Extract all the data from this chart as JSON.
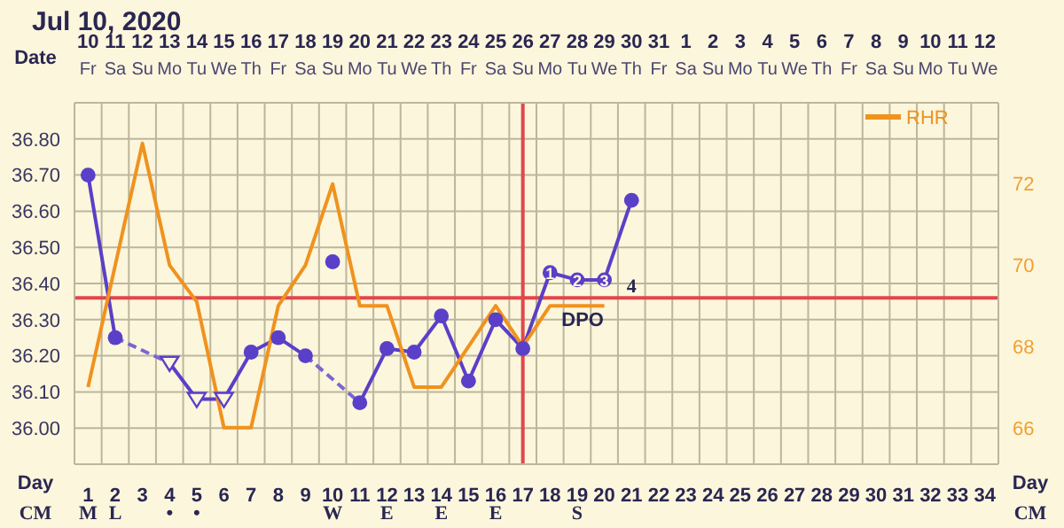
{
  "chart_data": {
    "type": "line",
    "title": "Jul 10, 2020",
    "xlabel": "Day",
    "x2label": "Date",
    "x": [
      1,
      2,
      3,
      4,
      5,
      6,
      7,
      8,
      9,
      10,
      11,
      12,
      13,
      14,
      15,
      16,
      17,
      18,
      19,
      20,
      21
    ],
    "xlim": [
      0.5,
      34.5
    ],
    "xticks": [
      1,
      2,
      3,
      4,
      5,
      6,
      7,
      8,
      9,
      10,
      11,
      12,
      13,
      14,
      15,
      16,
      17,
      18,
      19,
      20,
      21,
      22,
      23,
      24,
      25,
      26,
      27,
      28,
      29,
      30,
      31,
      32,
      33,
      34
    ],
    "x2lim": [
      "2020-07-09T12:00",
      "2020-08-12T12:00"
    ],
    "x2ticks": [
      {
        "value": "2020-07-10",
        "label": "10\nFr"
      },
      {
        "value": "2020-07-11",
        "label": "11\nSa"
      },
      {
        "value": "2020-07-12",
        "label": "12\nSu"
      },
      {
        "value": "2020-07-13",
        "label": "13\nMo"
      },
      {
        "value": "2020-07-14",
        "label": "14\nTu"
      },
      {
        "value": "2020-07-15",
        "label": "15\nWe"
      },
      {
        "value": "2020-07-16",
        "label": "16\nTh"
      },
      {
        "value": "2020-07-17",
        "label": "17\nFr"
      },
      {
        "value": "2020-07-18",
        "label": "18\nSa"
      },
      {
        "value": "2020-07-19",
        "label": "19\nSu"
      },
      {
        "value": "2020-07-20",
        "label": "20\nMo"
      },
      {
        "value": "2020-07-21",
        "label": "21\nTu"
      },
      {
        "value": "2020-07-22",
        "label": "22\nWe"
      },
      {
        "value": "2020-07-23",
        "label": "23\nTh"
      },
      {
        "value": "2020-07-24",
        "label": "24\nFr"
      },
      {
        "value": "2020-07-25",
        "label": "25\nSa"
      },
      {
        "value": "2020-07-26",
        "label": "26\nSu"
      },
      {
        "value": "2020-07-27",
        "label": "27\nMo"
      },
      {
        "value": "2020-07-28",
        "label": "28\nTu"
      },
      {
        "value": "2020-07-29",
        "label": "29\nWe"
      },
      {
        "value": "2020-07-30",
        "label": "30\nTh"
      },
      {
        "value": "2020-07-31",
        "label": "31\nFr"
      },
      {
        "value": "2020-08-01",
        "label": "1\nSa"
      },
      {
        "value": "2020-08-02",
        "label": "2\nSu"
      },
      {
        "value": "2020-08-03",
        "label": "3\nMo"
      },
      {
        "value": "2020-08-04",
        "label": "4\nTu"
      },
      {
        "value": "2020-08-05",
        "label": "5\nWe"
      },
      {
        "value": "2020-08-06",
        "label": "6\nTh"
      },
      {
        "value": "2020-08-07",
        "label": "7\nFr"
      },
      {
        "value": "2020-08-08",
        "label": "8\nSa"
      },
      {
        "value": "2020-08-09",
        "label": "9\nSu"
      },
      {
        "value": "2020-08-10",
        "label": "10\nMo"
      },
      {
        "value": "2020-08-11",
        "label": "11\nTu"
      },
      {
        "value": "2020-08-12",
        "label": "12\nWe"
      }
    ],
    "ylim": [
      35.9,
      36.9
    ],
    "yticks": [
      {
        "value": 36.0,
        "label": "36.00"
      },
      {
        "value": 36.1,
        "label": "36.10"
      },
      {
        "value": 36.2,
        "label": "36.20"
      },
      {
        "value": 36.3,
        "label": "36.30"
      },
      {
        "value": 36.4,
        "label": "36.40"
      },
      {
        "value": 36.5,
        "label": "36.50"
      },
      {
        "value": 36.6,
        "label": "36.60"
      },
      {
        "value": 36.7,
        "label": "36.70"
      },
      {
        "value": 36.8,
        "label": "36.80"
      }
    ],
    "y2lim": [
      65.1,
      74
    ],
    "y2ticks": [
      66,
      68,
      70,
      72
    ],
    "grid": true,
    "legend": "top right",
    "series": [
      {
        "color": "#5a3fc8",
        "marker": "none",
        "line_style": "solid",
        "values": [
          36.7,
          36.25,
          null,
          36.18,
          36.08,
          36.08,
          36.21,
          36.25,
          36.2,
          null,
          36.07,
          36.22,
          36.21,
          36.31,
          36.13,
          36.3,
          36.22,
          36.43,
          36.41,
          36.41,
          36.63
        ]
      },
      {
        "color": "#7a66d2",
        "marker": "none",
        "line_style": "dashed",
        "x": [
          2,
          4
        ],
        "values": [
          36.25,
          36.18
        ]
      },
      {
        "color": "#7a66d2",
        "marker": "none",
        "line_style": "dashed",
        "x": [
          9,
          11
        ],
        "values": [
          36.2,
          36.07
        ]
      },
      {
        "type": "scatter",
        "color": "#5a3fc8",
        "marker": "circle",
        "values": [
          36.7,
          36.25,
          null,
          null,
          null,
          null,
          36.21,
          36.25,
          36.2,
          36.46,
          36.07,
          36.22,
          36.21,
          36.31,
          36.13,
          36.3,
          36.22,
          36.43,
          36.41,
          36.41,
          36.63
        ]
      },
      {
        "type": "scatter",
        "color": "#5a3fc8",
        "marker": "triangle",
        "values": [
          null,
          null,
          null,
          36.18,
          36.08,
          36.08,
          null,
          null,
          null,
          null,
          null,
          null,
          null,
          null,
          null,
          null,
          null,
          null,
          null,
          null,
          null
        ]
      },
      {
        "name": "RHR",
        "axis": "y2",
        "color": "#f0921e",
        "marker": "none",
        "line_style": "solid",
        "values": [
          67,
          70,
          73,
          70,
          69.1,
          66,
          66,
          69,
          70,
          72,
          69,
          69,
          67,
          67,
          68,
          69,
          68,
          69,
          69,
          69,
          null
        ]
      }
    ],
    "ref_lines": [
      {
        "axis": "y",
        "value": 36.36,
        "color": "#e0474c"
      },
      {
        "axis": "x",
        "value": 17,
        "color": "#e0474c"
      }
    ],
    "annotations": [
      "CM",
      "CM",
      "M",
      "L",
      "•",
      "•",
      "W",
      "E",
      "E",
      "E",
      "S",
      "4",
      "DPO",
      {
        "text": "1",
        "x": 18,
        "y": 36.43
      },
      {
        "text": "2",
        "x": 19,
        "y": 36.41
      },
      {
        "text": "3",
        "x": 20,
        "y": 36.41
      }
    ]
  }
}
